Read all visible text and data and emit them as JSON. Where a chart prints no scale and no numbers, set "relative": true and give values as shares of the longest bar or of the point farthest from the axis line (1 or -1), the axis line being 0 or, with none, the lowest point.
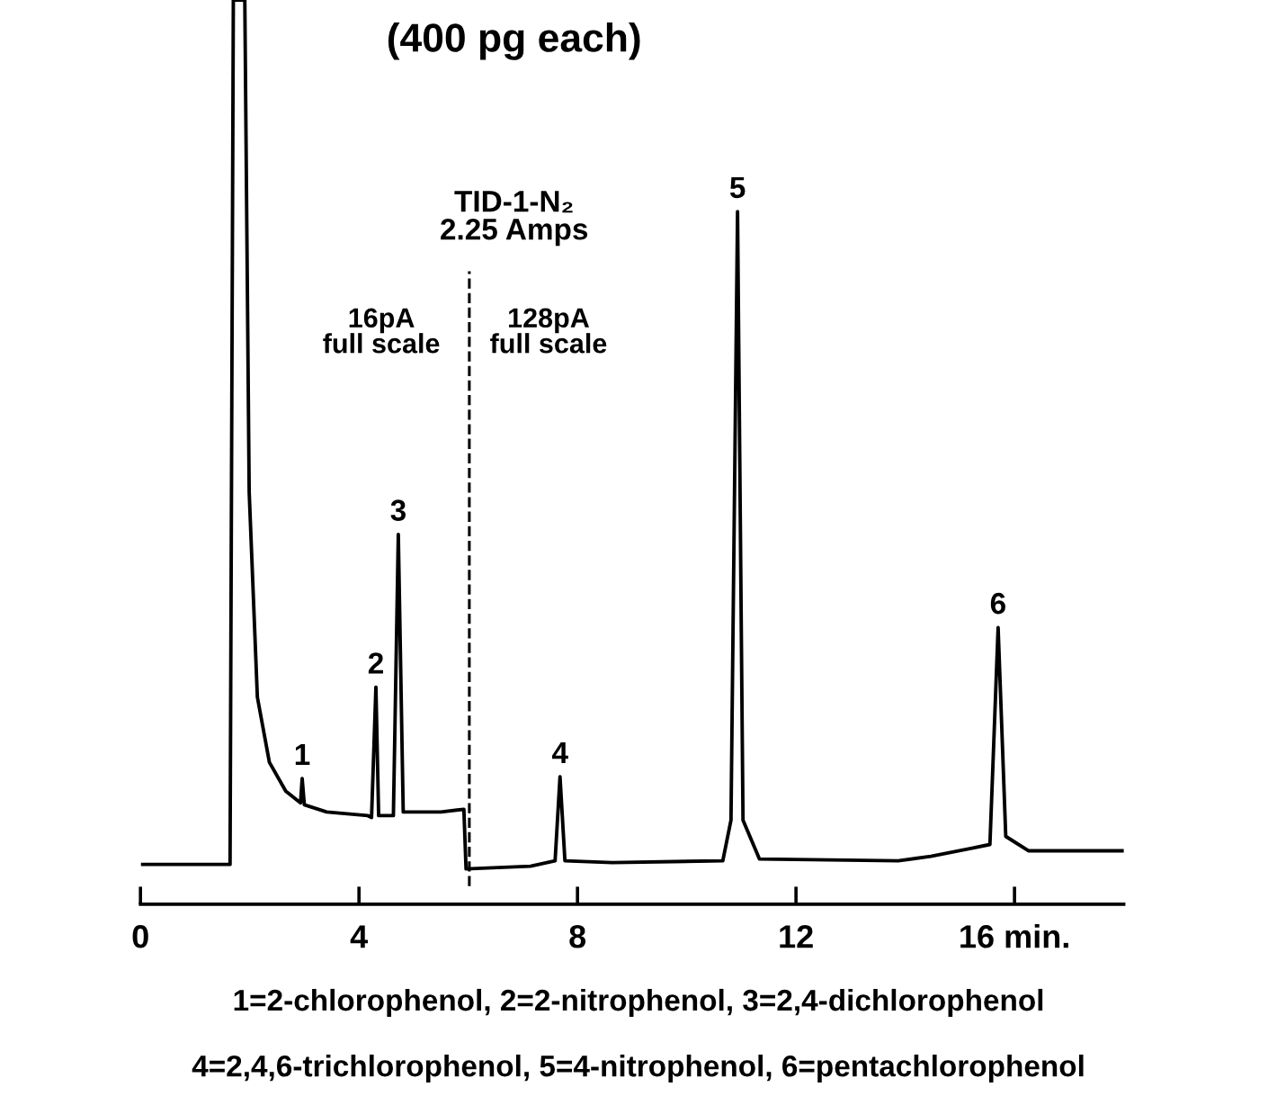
{
  "chart_data": {
    "type": "line",
    "relative": true,
    "title": "(400 pg each)",
    "x": [
      0.04,
      1.58,
      1.64,
      1.7,
      1.91,
      1.99,
      2.14,
      2.36,
      2.66,
      2.93,
      2.96,
      3.0,
      3.41,
      4.16,
      4.23,
      4.31,
      4.36,
      4.63,
      4.72,
      4.81,
      5.5,
      5.92,
      5.96,
      7.14,
      7.59,
      7.68,
      7.77,
      8.64,
      10.66,
      10.81,
      10.93,
      11.03,
      11.33,
      13.87,
      14.47,
      15.22,
      15.55,
      15.7,
      15.84,
      16.26,
      18.0
    ],
    "series": [
      {
        "color": "#000000",
        "values": [
          0.044,
          0.044,
          0.044,
          1,
          1,
          0.456,
          0.229,
          0.157,
          0.125,
          0.112,
          0.139,
          0.11,
          0.102,
          0.098,
          0.096,
          0.24,
          0.098,
          0.098,
          0.409,
          0.102,
          0.102,
          0.105,
          0.039,
          0.042,
          0.048,
          0.141,
          0.048,
          0.046,
          0.048,
          0.093,
          0.766,
          0.093,
          0.05,
          0.048,
          0.053,
          0.062,
          0.066,
          0.306,
          0.075,
          0.059,
          0.059
        ]
      }
    ],
    "xlim": [
      0,
      18
    ],
    "xticks": [
      0,
      4,
      8,
      12,
      {
        "value": 16,
        "label": "16 min."
      }
    ],
    "tick_labels": "x",
    "grid": false,
    "legend": false,
    "ref_lines": [
      {
        "axis": "x",
        "value": 6.02,
        "line_style": "dashed",
        "color": "#000000"
      }
    ],
    "annotations": [
      {
        "text": "1",
        "x": 2.96,
        "y": 0.139
      },
      {
        "text": "2",
        "x": 4.31,
        "y": 0.24
      },
      {
        "text": "3",
        "x": 4.72,
        "y": 0.409
      },
      {
        "text": "4",
        "x": 7.68,
        "y": 0.141
      },
      {
        "text": "5",
        "x": 10.93,
        "y": 0.766
      },
      {
        "text": "6",
        "x": 15.7,
        "y": 0.306
      },
      "TID-1-N₂\n2.25 Amps",
      "16pA\nfull scale",
      "128pA\nfull scale",
      "1=2-chlorophenol, 2=2-nitrophenol, 3=2,4-dichlorophenol",
      "4=2,4,6-trichlorophenol, 5=4-nitrophenol, 6=pentachlorophenol"
    ]
  }
}
